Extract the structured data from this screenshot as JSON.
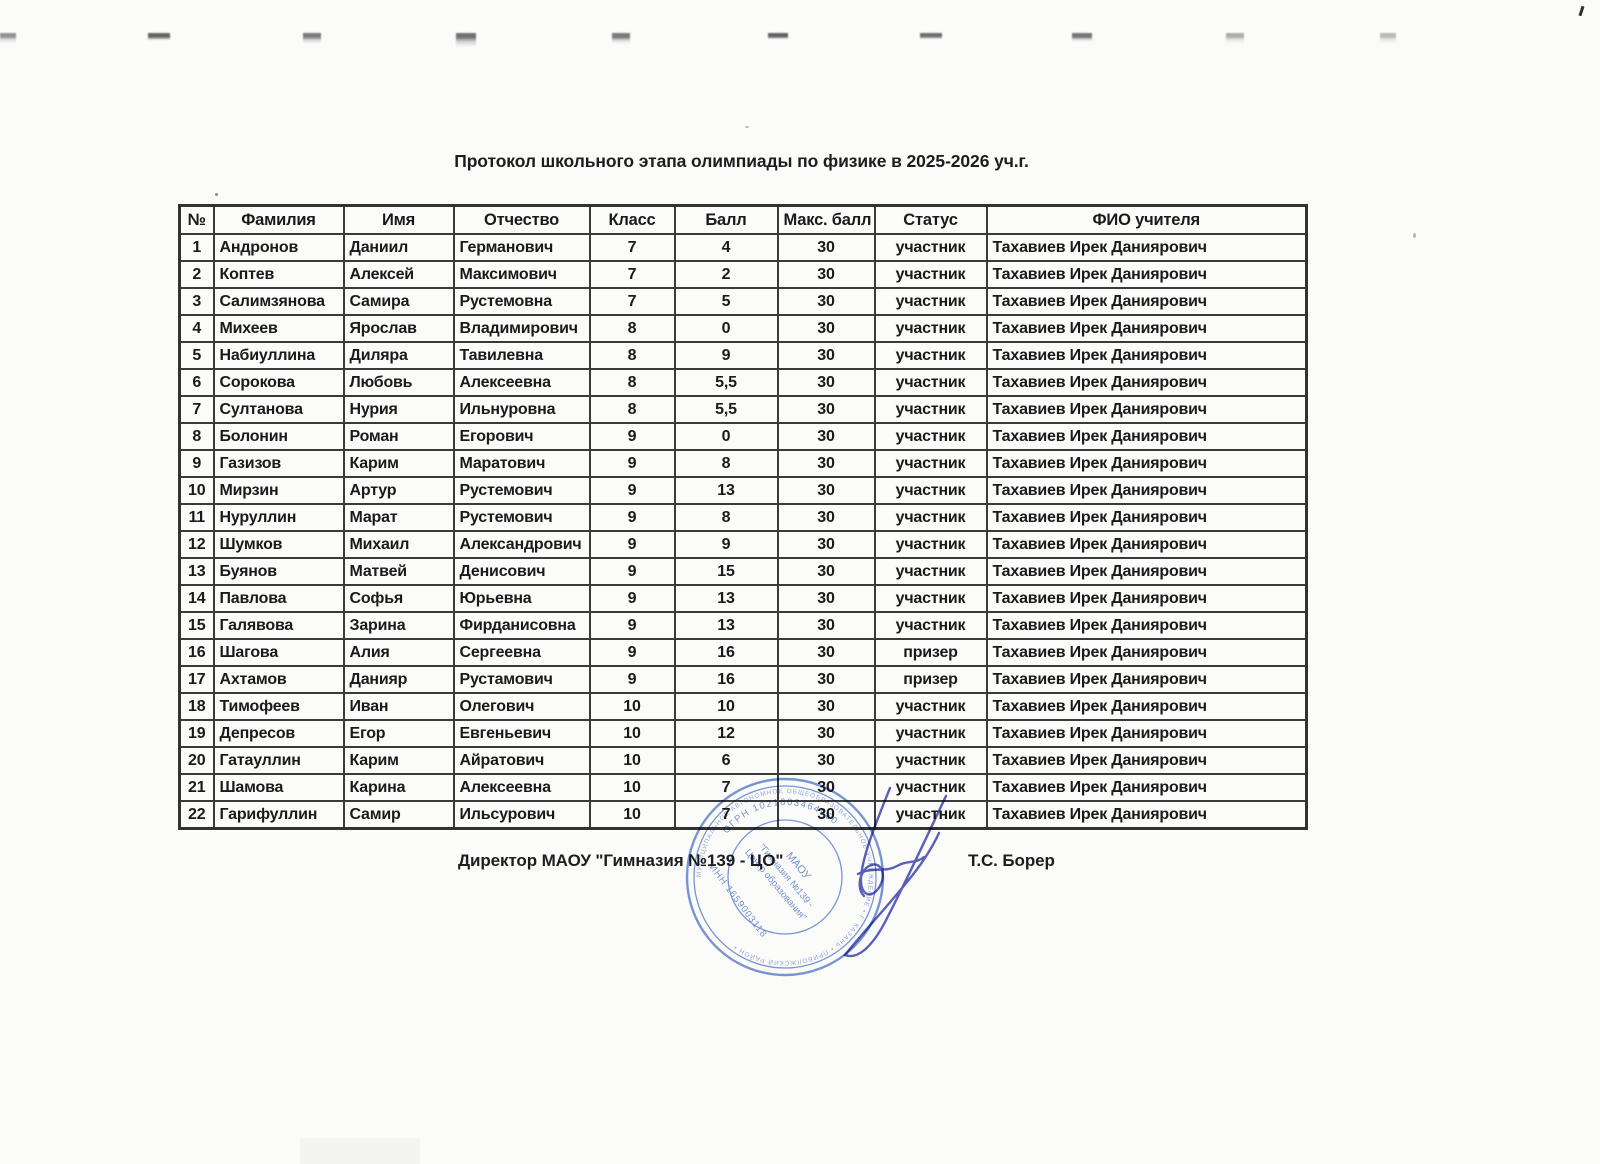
{
  "page": {
    "title": "Протокол школьного этапа олимпиады по физике в 2025-2026 уч.г."
  },
  "table": {
    "headers": [
      "№",
      "Фамилия",
      "Имя",
      "Отчество",
      "Класс",
      "Балл",
      "Макс. балл",
      "Статус",
      "ФИО учителя"
    ],
    "rows": [
      [
        "1",
        "Андронов",
        "Даниил",
        "Германович",
        "7",
        "4",
        "30",
        "участник",
        "Тахавиев Ирек Даниярович"
      ],
      [
        "2",
        "Коптев",
        "Алексей",
        "Максимович",
        "7",
        "2",
        "30",
        "участник",
        "Тахавиев Ирек Даниярович"
      ],
      [
        "3",
        "Салимзянова",
        "Самира",
        "Рустемовна",
        "7",
        "5",
        "30",
        "участник",
        "Тахавиев Ирек Даниярович"
      ],
      [
        "4",
        "Михеев",
        "Ярослав",
        "Владимирович",
        "8",
        "0",
        "30",
        "участник",
        "Тахавиев Ирек Даниярович"
      ],
      [
        "5",
        "Набиуллина",
        "Диляра",
        "Тавилевна",
        "8",
        "9",
        "30",
        "участник",
        "Тахавиев Ирек Даниярович"
      ],
      [
        "6",
        "Сорокова",
        "Любовь",
        "Алексеевна",
        "8",
        "5,5",
        "30",
        "участник",
        "Тахавиев Ирек Даниярович"
      ],
      [
        "7",
        "Султанова",
        "Нурия",
        "Ильнуровна",
        "8",
        "5,5",
        "30",
        "участник",
        "Тахавиев Ирек Даниярович"
      ],
      [
        "8",
        "Болонин",
        "Роман",
        "Егорович",
        "9",
        "0",
        "30",
        "участник",
        "Тахавиев Ирек Даниярович"
      ],
      [
        "9",
        "Газизов",
        "Карим",
        "Маратович",
        "9",
        "8",
        "30",
        "участник",
        "Тахавиев Ирек Даниярович"
      ],
      [
        "10",
        "Мирзин",
        "Артур",
        "Рустемович",
        "9",
        "13",
        "30",
        "участник",
        "Тахавиев Ирек Даниярович"
      ],
      [
        "11",
        "Нуруллин",
        "Марат",
        "Рустемович",
        "9",
        "8",
        "30",
        "участник",
        "Тахавиев Ирек Даниярович"
      ],
      [
        "12",
        "Шумков",
        "Михаил",
        "Александрович",
        "9",
        "9",
        "30",
        "участник",
        "Тахавиев Ирек Даниярович"
      ],
      [
        "13",
        "Буянов",
        "Матвей",
        "Денисович",
        "9",
        "15",
        "30",
        "участник",
        "Тахавиев Ирек Даниярович"
      ],
      [
        "14",
        "Павлова",
        "Софья",
        "Юрьевна",
        "9",
        "13",
        "30",
        "участник",
        "Тахавиев Ирек Даниярович"
      ],
      [
        "15",
        "Галявова",
        "Зарина",
        "Фирданисовна",
        "9",
        "13",
        "30",
        "участник",
        "Тахавиев Ирек Даниярович"
      ],
      [
        "16",
        "Шагова",
        "Алия",
        "Сергеевна",
        "9",
        "16",
        "30",
        "призер",
        "Тахавиев Ирек Даниярович"
      ],
      [
        "17",
        "Ахтамов",
        "Данияр",
        "Рустамович",
        "9",
        "16",
        "30",
        "призер",
        "Тахавиев Ирек Даниярович"
      ],
      [
        "18",
        "Тимофеев",
        "Иван",
        "Олегович",
        "10",
        "10",
        "30",
        "участник",
        "Тахавиев Ирек Даниярович"
      ],
      [
        "19",
        "Депресов",
        "Егор",
        "Евгеньевич",
        "10",
        "12",
        "30",
        "участник",
        "Тахавиев Ирек Даниярович"
      ],
      [
        "20",
        "Гатауллин",
        "Карим",
        "Айратович",
        "10",
        "6",
        "30",
        "участник",
        "Тахавиев Ирек Даниярович"
      ],
      [
        "21",
        "Шамова",
        "Карина",
        "Алексеевна",
        "10",
        "7",
        "30",
        "участник",
        "Тахавиев Ирек Даниярович"
      ],
      [
        "22",
        "Гарифуллин",
        "Самир",
        "Ильсурович",
        "10",
        "7",
        "30",
        "участник",
        "Тахавиев Ирек Даниярович"
      ]
    ]
  },
  "footer": {
    "director_label": "Директор МАОУ \"Гимназия №139 - ЦО\"",
    "director_name": "Т.С. Борер"
  },
  "stamp": {
    "ogrn": "ОГРН 1021603464960",
    "inn": "ИНН 1659003118",
    "org_line1": "МАОУ",
    "org_line2": "\"Гимназия №139 -",
    "org_line3": "Центр образования\"",
    "ring_text": "МУНИЦИПАЛЬНОЕ АВТОНОМНОЕ ОБЩЕОБРАЗОВАТЕЛЬНОЕ УЧРЕЖДЕНИЕ • Г. КАЗАНЬ • ПРИВОЛЖСКИЙ РАЙОН •",
    "color": "#5b7fcb"
  }
}
